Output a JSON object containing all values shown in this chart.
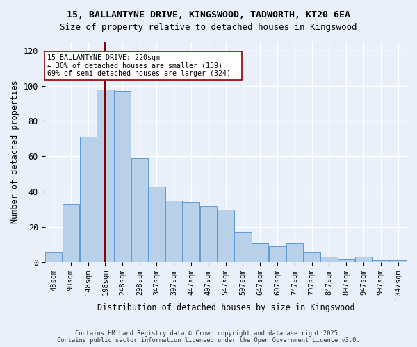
{
  "title_line1": "15, BALLANTYNE DRIVE, KINGSWOOD, TADWORTH, KT20 6EA",
  "title_line2": "Size of property relative to detached houses in Kingswood",
  "xlabel": "Distribution of detached houses by size in Kingswood",
  "ylabel": "Number of detached properties",
  "bar_values": [
    6,
    33,
    71,
    98,
    97,
    59,
    43,
    35,
    34,
    32,
    30,
    17,
    11,
    9,
    11,
    6,
    3,
    2,
    3,
    1,
    1
  ],
  "bin_labels": [
    "48sqm",
    "98sqm",
    "148sqm",
    "198sqm",
    "248sqm",
    "298sqm",
    "347sqm",
    "397sqm",
    "447sqm",
    "497sqm",
    "547sqm",
    "597sqm",
    "647sqm",
    "697sqm",
    "747sqm",
    "797sqm",
    "847sqm",
    "897sqm",
    "947sqm",
    "997sqm",
    "1047sqm"
  ],
  "bar_color": "#b8d0e8",
  "bar_edge_color": "#5b9bd5",
  "background_color": "#eaf0f9",
  "grid_color": "#ffffff",
  "vline_x": 198,
  "vline_color": "#8b0000",
  "annotation_title": "15 BALLANTYNE DRIVE: 220sqm",
  "annotation_line1": "← 30% of detached houses are smaller (139)",
  "annotation_line2": "69% of semi-detached houses are larger (324) →",
  "annotation_box_color": "#ffffff",
  "annotation_border_color": "#8b0000",
  "ylim": [
    0,
    125
  ],
  "yticks": [
    0,
    20,
    40,
    60,
    80,
    100,
    120
  ],
  "bin_edges": [
    23,
    73,
    123,
    173,
    223,
    273,
    322,
    372,
    422,
    472,
    522,
    572,
    622,
    672,
    722,
    772,
    822,
    872,
    922,
    972,
    1022,
    1072
  ],
  "footer_line1": "Contains HM Land Registry data © Crown copyright and database right 2025.",
  "footer_line2": "Contains public sector information licensed under the Open Government Licence v3.0."
}
